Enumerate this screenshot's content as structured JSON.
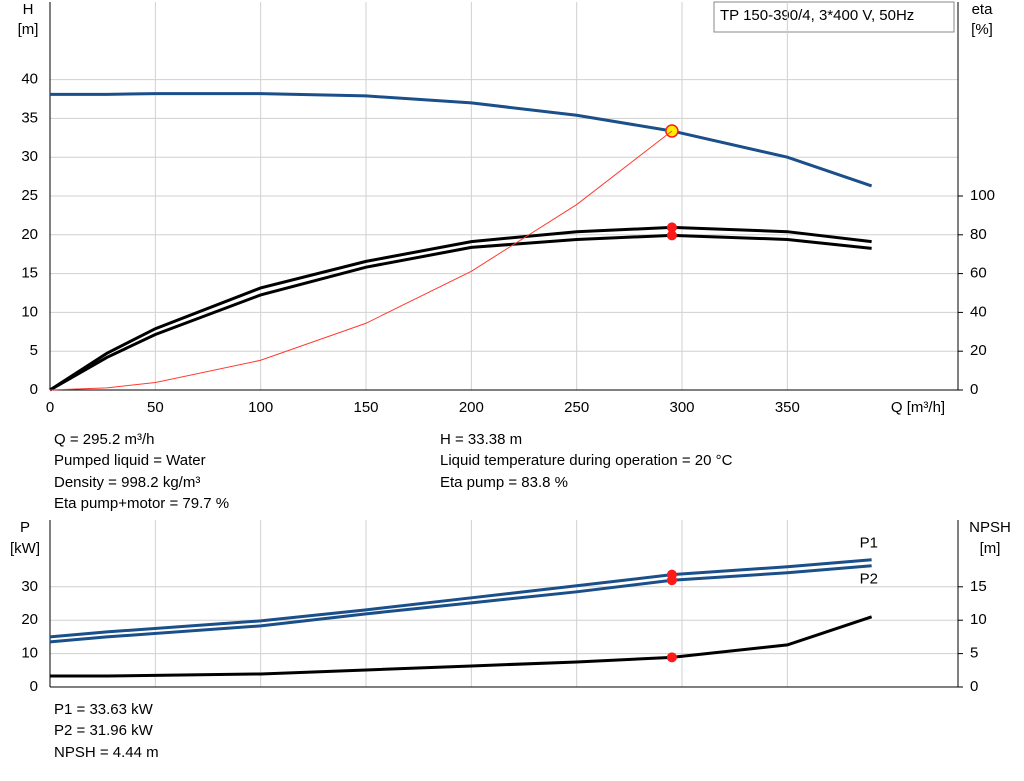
{
  "chart_data": [
    {
      "type": "line",
      "title": "TP 150-390/4, 3*400 V, 50Hz",
      "y_label": "H",
      "y_unit": "[m]",
      "y2_label": "eta",
      "y2_unit": "[%]",
      "x_label": "Q [m³/h]",
      "x": [
        0,
        27,
        50,
        100,
        150,
        200,
        250,
        295.2,
        350,
        390
      ],
      "xlim": [
        0,
        431
      ],
      "xticks": [
        0,
        50,
        100,
        150,
        200,
        250,
        300,
        350
      ],
      "ylim": [
        0,
        50
      ],
      "yticks": [
        0,
        5,
        10,
        15,
        20,
        25,
        30,
        35,
        40
      ],
      "y2lim": [
        0,
        200
      ],
      "y2ticks": [
        0,
        20,
        40,
        60,
        80,
        100
      ],
      "grid": true,
      "series": [
        {
          "color": "#1a4f8a",
          "values": [
            38.1,
            38.1,
            38.2,
            38.2,
            37.9,
            37.0,
            35.4,
            33.38,
            30.0,
            26.3
          ]
        },
        {
          "color": "#000000",
          "axis": "y2",
          "values": [
            0,
            18.9,
            31.6,
            52.6,
            66.3,
            76.5,
            81.6,
            83.8,
            81.6,
            76.5
          ]
        },
        {
          "color": "#000000",
          "axis": "y2",
          "values": [
            0,
            16.8,
            28.6,
            49,
            63.3,
            73.5,
            77.6,
            79.7,
            77.6,
            73
          ]
        },
        {
          "color": "#ff3b30",
          "values": [
            0,
            0.28,
            0.96,
            3.83,
            8.6,
            15.3,
            23.9,
            33.38,
            null,
            null
          ]
        }
      ],
      "annotations": [
        "Q = 295.2 m³/h",
        "Pumped liquid = Water",
        "Density = 998.2 kg/m³",
        "Eta pump+motor = 79.7 %",
        "H = 33.38 m",
        "Liquid temperature during operation = 20 °C",
        "Eta pump = 83.8 %"
      ]
    },
    {
      "type": "line",
      "y_label": "P",
      "y_unit": "[kW]",
      "y2_label": "NPSH",
      "y2_unit": "[m]",
      "x": [
        0,
        27,
        100,
        150,
        200,
        250,
        295.2,
        350,
        390
      ],
      "xlim": [
        0,
        431
      ],
      "xticks": [
        0,
        50,
        100,
        150,
        200,
        250,
        300,
        350
      ],
      "ylim": [
        0,
        50
      ],
      "yticks": [
        0,
        10,
        20,
        30
      ],
      "y2lim": [
        0,
        25
      ],
      "y2ticks": [
        0,
        5,
        10,
        15
      ],
      "grid": true,
      "series": [
        {
          "name": "P1",
          "color": "#1a4f8a",
          "values": [
            15,
            16.5,
            19.8,
            23.1,
            26.7,
            30.3,
            33.63,
            36,
            38.1
          ]
        },
        {
          "name": "P2",
          "color": "#1a4f8a",
          "values": [
            13.5,
            15,
            18.3,
            21.9,
            25.2,
            28.5,
            31.96,
            34.2,
            36.3
          ]
        },
        {
          "color": "#000000",
          "axis": "y2",
          "values": [
            1.65,
            1.65,
            1.95,
            2.55,
            3.15,
            3.75,
            4.44,
            6.3,
            10.5
          ]
        }
      ],
      "annotations": [
        "P1 = 33.63 kW",
        "P2 = 31.96 kW",
        "NPSH = 4.44 m"
      ]
    }
  ]
}
